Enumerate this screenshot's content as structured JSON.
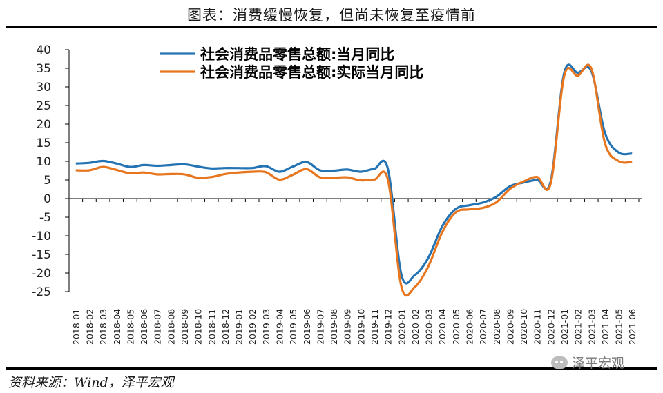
{
  "header": {
    "title": "图表：消费缓慢恢复，但尚未恢复至疫情前"
  },
  "footer": {
    "source": "资料来源：Wind，泽平宏观",
    "watermark": "泽平宏观"
  },
  "colors": {
    "series1": "#2473b3",
    "series2": "#e8761f",
    "axis": "#000000"
  },
  "chart_data": {
    "type": "line",
    "title": "",
    "xlabel": "",
    "ylabel": "",
    "ylim": [
      -25,
      40
    ],
    "yticks": [
      40,
      35,
      30,
      25,
      20,
      15,
      10,
      5,
      0,
      -5,
      -10,
      -15,
      -20,
      -25
    ],
    "legend_position": "top",
    "grid": false,
    "categories": [
      "2018-01",
      "2018-02",
      "2018-03",
      "2018-04",
      "2018-05",
      "2018-06",
      "2018-07",
      "2018-08",
      "2018-09",
      "2018-10",
      "2018-11",
      "2018-12",
      "2019-01",
      "2019-02",
      "2019-03",
      "2019-04",
      "2019-05",
      "2019-06",
      "2019-07",
      "2019-08",
      "2019-09",
      "2019-10",
      "2019-11",
      "2019-12",
      "2020-01",
      "2020-02",
      "2020-03",
      "2020-04",
      "2020-05",
      "2020-06",
      "2020-07",
      "2020-08",
      "2020-09",
      "2020-10",
      "2020-11",
      "2020-12",
      "2021-01",
      "2021-02",
      "2021-03",
      "2021-04",
      "2021-05",
      "2021-06"
    ],
    "series": [
      {
        "name": "社会消费品零售总额:当月同比",
        "color": "#2473b3",
        "values": [
          9.4,
          9.6,
          10.1,
          9.4,
          8.5,
          9.0,
          8.8,
          9.0,
          9.2,
          8.6,
          8.1,
          8.2,
          8.2,
          8.2,
          8.7,
          7.2,
          8.6,
          9.8,
          7.6,
          7.5,
          7.8,
          7.2,
          8.0,
          8.0,
          -20.5,
          -20.5,
          -15.8,
          -7.5,
          -2.8,
          -1.8,
          -1.1,
          0.5,
          3.3,
          4.3,
          5.0,
          4.6,
          33.8,
          33.8,
          34.2,
          17.7,
          12.4,
          12.1
        ]
      },
      {
        "name": "社会消费品零售总额:实际当月同比",
        "color": "#e8761f",
        "values": [
          7.6,
          7.6,
          8.5,
          7.7,
          6.8,
          7.0,
          6.5,
          6.6,
          6.5,
          5.6,
          5.8,
          6.6,
          7.0,
          7.2,
          7.1,
          5.1,
          6.4,
          7.9,
          5.7,
          5.6,
          5.7,
          4.9,
          5.1,
          5.1,
          -23.7,
          -23.7,
          -18.1,
          -9.1,
          -3.7,
          -2.9,
          -2.5,
          -1.0,
          2.6,
          4.6,
          5.8,
          4.0,
          33.0,
          33.0,
          34.9,
          14.9,
          10.1,
          9.8
        ]
      }
    ]
  }
}
